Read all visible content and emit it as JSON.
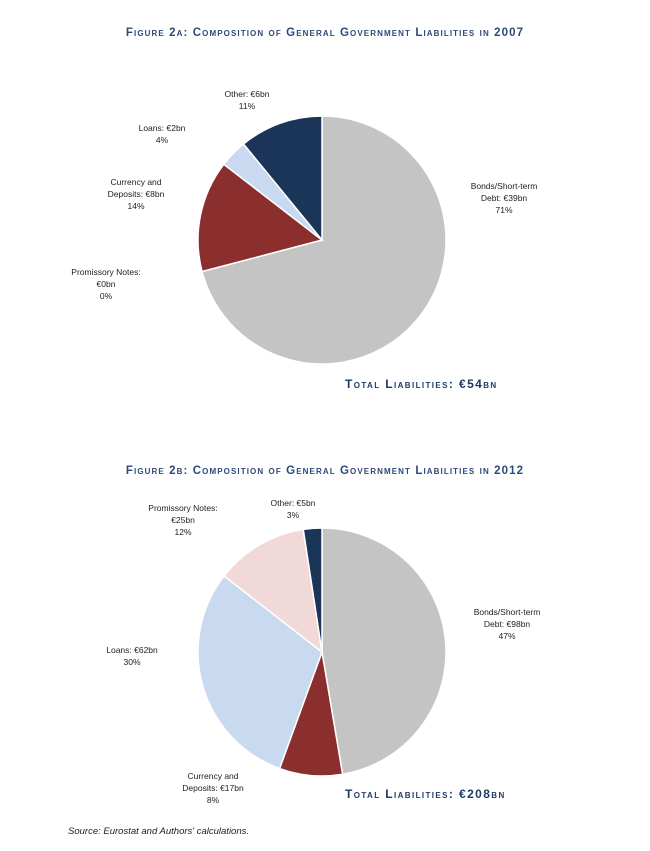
{
  "chart_data": [
    {
      "type": "pie",
      "title": "Figure 2a: Composition of General Government Liabilities in 2007",
      "total_label": "Total Liabilities: €54bn",
      "slices": [
        {
          "name": "Bonds/Short-term Debt",
          "label_lines": [
            "Bonds/Short-term",
            "Debt: €39bn",
            "71%"
          ],
          "value_bn": 39,
          "pct": 71,
          "color": "#c4c4c4"
        },
        {
          "name": "Promissory Notes",
          "label_lines": [
            "Promissory Notes:",
            "€0bn",
            "0%"
          ],
          "value_bn": 0,
          "pct": 0,
          "color": "#f2d9d9"
        },
        {
          "name": "Currency and Deposits",
          "label_lines": [
            "Currency and",
            "Deposits: €8bn",
            "14%"
          ],
          "value_bn": 8,
          "pct": 14,
          "color": "#8b2e2e"
        },
        {
          "name": "Loans",
          "label_lines": [
            "Loans: €2bn",
            "4%"
          ],
          "value_bn": 2,
          "pct": 4,
          "color": "#c9d9ef"
        },
        {
          "name": "Other",
          "label_lines": [
            "Other: €6bn",
            "11%"
          ],
          "value_bn": 6,
          "pct": 11,
          "color": "#1b3558"
        }
      ]
    },
    {
      "type": "pie",
      "title": "Figure 2b: Composition of General Government Liabilities in 2012",
      "total_label": "Total Liabilities: €208bn",
      "slices": [
        {
          "name": "Bonds/Short-term Debt",
          "label_lines": [
            "Bonds/Short-term",
            "Debt: €98bn",
            "47%"
          ],
          "value_bn": 98,
          "pct": 47,
          "color": "#c4c4c4"
        },
        {
          "name": "Currency and Deposits",
          "label_lines": [
            "Currency and",
            "Deposits: €17bn",
            "8%"
          ],
          "value_bn": 17,
          "pct": 8,
          "color": "#8b2e2e"
        },
        {
          "name": "Loans",
          "label_lines": [
            "Loans: €62bn",
            "30%"
          ],
          "value_bn": 62,
          "pct": 30,
          "color": "#c9d9ef"
        },
        {
          "name": "Promissory Notes",
          "label_lines": [
            "Promissory Notes:",
            "€25bn",
            "12%"
          ],
          "value_bn": 25,
          "pct": 12,
          "color": "#f2d9d9"
        },
        {
          "name": "Other",
          "label_lines": [
            "Other: €5bn",
            "3%"
          ],
          "value_bn": 5,
          "pct": 3,
          "color": "#1b3558"
        }
      ]
    }
  ],
  "source": "Source: Eurostat and Authors' calculations."
}
